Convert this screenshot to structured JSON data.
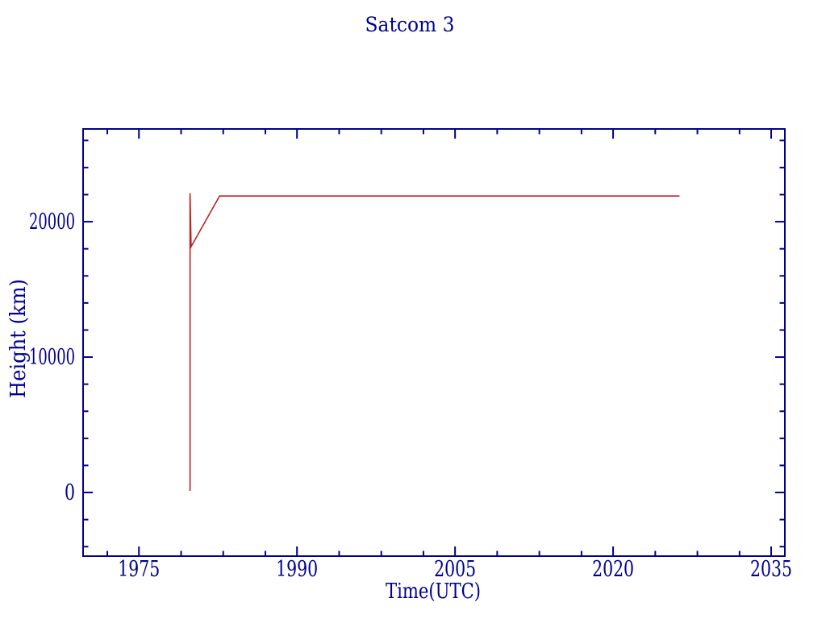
{
  "colors": {
    "axis": "#000090",
    "text": "#000090",
    "series_line": "#bb2222",
    "background": "#ffffff"
  },
  "chart_data": {
    "type": "line",
    "title": "Satcom 3",
    "xlabel": "Time(UTC)",
    "ylabel": "Height (km)",
    "xlim": [
      1969.7,
      2036.3
    ],
    "ylim": [
      -4700,
      26850
    ],
    "x_major_ticks": [
      1975,
      1990,
      2005,
      2020,
      2035
    ],
    "x_minor_ticks": [
      1972,
      1979,
      1983,
      1987,
      1994,
      1998,
      2002,
      2009,
      2013,
      2017,
      2024,
      2028,
      2032
    ],
    "x_tick_labels": [
      "1975",
      "1990",
      "2005",
      "2020",
      "2035"
    ],
    "y_major_ticks": [
      0,
      10000,
      20000
    ],
    "y_minor_ticks": [
      -4000,
      -2000,
      2000,
      4000,
      6000,
      8000,
      12000,
      14000,
      16000,
      18000,
      22000,
      24000,
      26000
    ],
    "y_tick_labels": [
      "0",
      "10000",
      "20000"
    ],
    "grid": false,
    "legend": "none",
    "tick_direction": "inward, mirrored on all four box sides",
    "series": [
      {
        "name": "Satcom 3 orbital height",
        "color": "#bb2222",
        "points": [
          [
            1979.85,
            120
          ],
          [
            1979.85,
            22100
          ],
          [
            1979.95,
            18150
          ],
          [
            1982.65,
            21900
          ],
          [
            2026.3,
            21900
          ]
        ]
      }
    ]
  }
}
